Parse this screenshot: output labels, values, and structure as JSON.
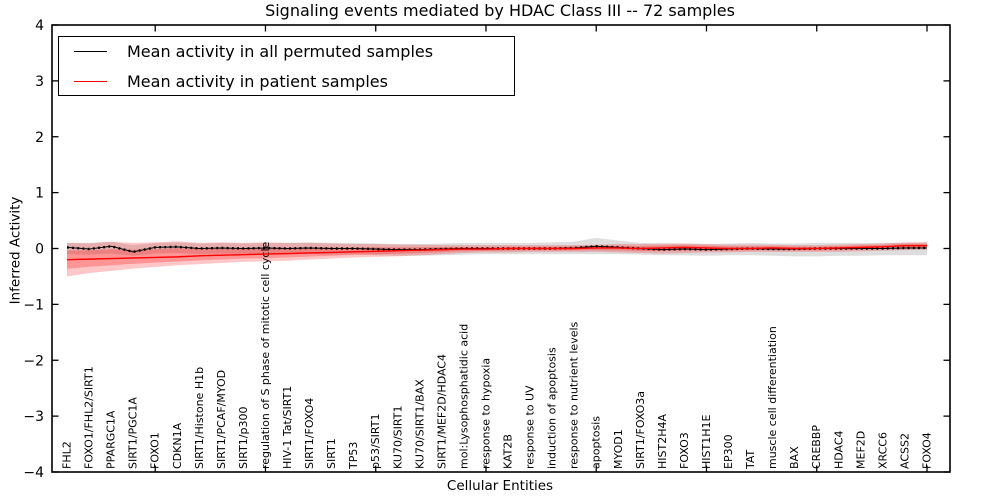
{
  "title": "Signaling events mediated by HDAC Class III -- 72 samples",
  "legend": {
    "items": [
      {
        "label": "Mean activity in all permuted samples",
        "color": "#000000"
      },
      {
        "label": "Mean activity in patient samples",
        "color": "#ff0000"
      }
    ],
    "position": "upper left"
  },
  "axes": {
    "ylabel": "Inferred Activity",
    "xlabel": "Cellular Entities",
    "yticks": [
      4,
      3,
      2,
      1,
      0,
      -1,
      -2,
      -3,
      -4
    ],
    "ylim": [
      -4,
      4
    ]
  },
  "chart_data": {
    "type": "line",
    "title": "Signaling events mediated by HDAC Class III -- 72 samples",
    "xlabel": "Cellular Entities",
    "ylabel": "Inferred Activity",
    "ylim": [
      -4,
      4
    ],
    "grid": false,
    "legend_position": "upper left",
    "categories": [
      "FHL2",
      "FOXO1/FHL2/SIRT1",
      "PPARGC1A",
      "SIRT1/PGC1A",
      "FOXO1",
      "CDKN1A",
      "SIRT1/Histone H1b",
      "SIRT1/PCAF/MYOD",
      "SIRT1/p300",
      "regulation of S phase of mitotic cell cycle",
      "HIV-1 Tat/SIRT1",
      "SIRT1/FOXO4",
      "SIRT1",
      "TP53",
      "p53/SIRT1",
      "KU70/SIRT1",
      "KU70/SIRT1/BAX",
      "SIRT1/MEF2D/HDAC4",
      "mol:Lysophosphatidic acid",
      "response to hypoxia",
      "KAT2B",
      "response to UV",
      "induction of apoptosis",
      "response to nutrient levels",
      "apoptosis",
      "MYOD1",
      "SIRT1/FOXO3a",
      "HIST2H4A",
      "FOXO3",
      "HIST1H1E",
      "EP300",
      "TAT",
      "muscle cell differentiation",
      "BAX",
      "CREBBP",
      "HDAC4",
      "MEF2D",
      "XRCC6",
      "ACSS2",
      "FOXO4"
    ],
    "series": [
      {
        "name": "Mean activity in all permuted samples",
        "color": "#000000",
        "band_color": "rgba(0,0,0,0.13)",
        "values": [
          0.02,
          -0.01,
          0.04,
          -0.06,
          0.02,
          0.03,
          0.0,
          0.01,
          0.0,
          0.01,
          0.0,
          0.01,
          0.0,
          0.0,
          -0.01,
          -0.02,
          -0.02,
          -0.01,
          0.0,
          0.0,
          0.0,
          0.0,
          0.0,
          0.01,
          0.04,
          0.02,
          0.0,
          -0.02,
          -0.01,
          -0.02,
          -0.01,
          0.0,
          -0.01,
          -0.01,
          0.0,
          0.0,
          0.0,
          0.0,
          0.01,
          0.01
        ],
        "band_low": [
          -0.1,
          -0.11,
          -0.09,
          -0.13,
          -0.09,
          -0.08,
          -0.1,
          -0.09,
          -0.1,
          -0.09,
          -0.1,
          -0.1,
          -0.11,
          -0.1,
          -0.12,
          -0.13,
          -0.13,
          -0.12,
          -0.11,
          -0.1,
          -0.1,
          -0.1,
          -0.1,
          -0.1,
          -0.1,
          -0.1,
          -0.11,
          -0.12,
          -0.12,
          -0.13,
          -0.12,
          -0.12,
          -0.13,
          -0.14,
          -0.14,
          -0.13,
          -0.13,
          -0.12,
          -0.12,
          -0.12
        ],
        "band_high": [
          0.1,
          0.09,
          0.12,
          0.06,
          0.1,
          0.11,
          0.09,
          0.1,
          0.09,
          0.1,
          0.1,
          0.11,
          0.1,
          0.1,
          0.09,
          0.08,
          0.08,
          0.09,
          0.1,
          0.1,
          0.1,
          0.1,
          0.11,
          0.12,
          0.19,
          0.14,
          0.1,
          0.09,
          0.09,
          0.08,
          0.09,
          0.1,
          0.09,
          0.09,
          0.1,
          0.1,
          0.1,
          0.1,
          0.1,
          0.11
        ]
      },
      {
        "name": "Mean activity in patient samples",
        "color": "#ff0000",
        "band_color": "rgba(255,0,0,0.22)",
        "values": [
          -0.2,
          -0.19,
          -0.18,
          -0.17,
          -0.16,
          -0.15,
          -0.13,
          -0.12,
          -0.11,
          -0.1,
          -0.09,
          -0.08,
          -0.07,
          -0.06,
          -0.05,
          -0.04,
          -0.03,
          -0.02,
          -0.01,
          -0.01,
          0.0,
          0.0,
          0.0,
          0.0,
          0.01,
          0.01,
          0.0,
          0.01,
          0.02,
          0.01,
          0.0,
          0.0,
          0.01,
          0.0,
          0.0,
          0.01,
          0.02,
          0.03,
          0.05,
          0.05
        ],
        "band_low": [
          -0.5,
          -0.44,
          -0.4,
          -0.36,
          -0.33,
          -0.3,
          -0.28,
          -0.26,
          -0.24,
          -0.23,
          -0.22,
          -0.2,
          -0.18,
          -0.16,
          -0.15,
          -0.14,
          -0.12,
          -0.1,
          -0.08,
          -0.07,
          -0.07,
          -0.06,
          -0.06,
          -0.06,
          -0.06,
          -0.07,
          -0.08,
          -0.09,
          -0.08,
          -0.07,
          -0.07,
          -0.06,
          -0.06,
          -0.06,
          -0.06,
          -0.06,
          -0.05,
          -0.04,
          -0.03,
          -0.02
        ],
        "band_high": [
          0.1,
          0.1,
          0.12,
          0.1,
          0.11,
          0.13,
          0.1,
          0.11,
          0.1,
          0.11,
          0.1,
          0.1,
          0.09,
          0.08,
          0.08,
          0.07,
          0.07,
          0.06,
          0.06,
          0.06,
          0.06,
          0.06,
          0.06,
          0.06,
          0.07,
          0.08,
          0.08,
          0.09,
          0.09,
          0.08,
          0.07,
          0.07,
          0.07,
          0.06,
          0.06,
          0.07,
          0.08,
          0.09,
          0.11,
          0.11
        ]
      }
    ]
  }
}
